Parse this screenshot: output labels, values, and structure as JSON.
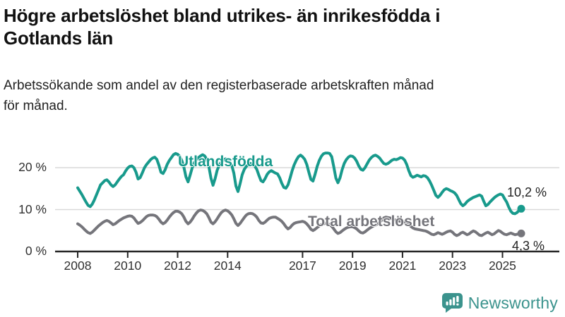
{
  "header": {
    "title_line1": "Högre arbetslöshet bland utrikes- än inrikesfödda i",
    "title_line2": "Gotlands län",
    "subtitle_line1": "Arbetssökande som andel av den registerbaserade arbetskraften månad",
    "subtitle_line2": "för månad."
  },
  "branding": {
    "name": "Newsworthy",
    "icon": "bar-chart-speech-bubble-icon",
    "color": "#3b938d"
  },
  "chart_data": {
    "type": "line",
    "x_unit": "month",
    "x_start": "2008-01",
    "x_tick_labels": [
      "2008",
      "2010",
      "2012",
      "2014",
      "2017",
      "2019",
      "2021",
      "2023",
      "2025"
    ],
    "y_tick_labels": [
      "20 %",
      "10 %",
      "0 %"
    ],
    "y_tick_values": [
      20,
      10,
      0
    ],
    "ylim": [
      0,
      25
    ],
    "grid": "horizontal-only",
    "legend_position": "labels-on-chart",
    "series": [
      {
        "name": "Utlandsfödda",
        "color": "#189a8c",
        "end_label": "10,2 %",
        "last_value": 10.2,
        "values": [
          15.2,
          14.4,
          13.6,
          12.7,
          11.8,
          11.0,
          10.7,
          11.3,
          12.3,
          13.5,
          14.7,
          15.9,
          16.4,
          16.9,
          17.1,
          16.6,
          15.9,
          15.5,
          15.9,
          16.6,
          17.3,
          17.9,
          18.3,
          19.2,
          19.9,
          20.3,
          20.4,
          20.0,
          18.9,
          17.3,
          17.6,
          18.7,
          19.9,
          20.7,
          21.3,
          21.9,
          22.3,
          22.5,
          22.0,
          20.6,
          18.9,
          18.6,
          19.5,
          20.8,
          21.7,
          22.4,
          23.1,
          23.4,
          23.2,
          22.7,
          21.7,
          20.1,
          17.8,
          16.6,
          18.2,
          20.0,
          21.2,
          21.9,
          22.4,
          22.8,
          23.1,
          22.8,
          22.0,
          20.3,
          17.5,
          15.8,
          17.4,
          19.4,
          20.6,
          21.3,
          21.8,
          22.1,
          21.9,
          21.4,
          20.5,
          18.7,
          15.6,
          14.3,
          16.2,
          18.3,
          19.6,
          20.3,
          20.8,
          21.0,
          20.8,
          20.4,
          19.6,
          18.2,
          16.9,
          16.6,
          17.4,
          18.4,
          19.0,
          19.3,
          19.0,
          18.7,
          18.5,
          17.6,
          16.3,
          15.3,
          15.1,
          15.9,
          17.5,
          19.3,
          20.7,
          21.8,
          22.6,
          23.0,
          22.6,
          22.0,
          20.8,
          18.9,
          17.2,
          16.8,
          18.4,
          20.3,
          21.7,
          22.7,
          23.3,
          23.5,
          23.5,
          23.4,
          22.6,
          20.2,
          17.5,
          16.4,
          17.6,
          19.5,
          21.0,
          21.9,
          22.5,
          22.8,
          22.7,
          22.3,
          21.5,
          20.4,
          19.6,
          19.4,
          20.0,
          20.9,
          21.8,
          22.4,
          22.8,
          23.0,
          22.7,
          22.3,
          21.6,
          21.0,
          20.8,
          21.0,
          21.4,
          21.8,
          22.0,
          21.9,
          22.1,
          22.4,
          22.3,
          21.8,
          20.8,
          19.3,
          18.1,
          17.7,
          17.9,
          18.2,
          18.0,
          17.8,
          18.1,
          18.0,
          17.6,
          16.8,
          15.8,
          14.6,
          13.4,
          12.9,
          13.4,
          14.1,
          14.7,
          15.0,
          14.8,
          14.5,
          14.3,
          14.0,
          13.4,
          12.4,
          11.4,
          10.9,
          11.3,
          11.9,
          12.3,
          12.6,
          12.9,
          13.1,
          13.3,
          13.5,
          13.2,
          12.0,
          10.9,
          11.2,
          11.8,
          12.3,
          12.8,
          13.2,
          13.5,
          13.7,
          13.5,
          12.6,
          11.8,
          10.6,
          9.6,
          9.1,
          9.0,
          9.3,
          9.8,
          10.2
        ]
      },
      {
        "name": "Total arbetslöshet",
        "color": "#75757b",
        "end_label": "4,3 %",
        "last_value": 4.3,
        "values": [
          6.6,
          6.3,
          5.9,
          5.4,
          4.9,
          4.5,
          4.3,
          4.6,
          5.1,
          5.6,
          6.1,
          6.5,
          6.9,
          7.2,
          7.4,
          7.2,
          6.8,
          6.4,
          6.6,
          7.0,
          7.4,
          7.7,
          8.0,
          8.2,
          8.4,
          8.5,
          8.4,
          8.0,
          7.3,
          6.7,
          6.9,
          7.3,
          7.8,
          8.3,
          8.6,
          8.7,
          8.7,
          8.6,
          8.3,
          7.7,
          7.0,
          6.6,
          6.9,
          7.5,
          8.2,
          8.8,
          9.3,
          9.6,
          9.6,
          9.4,
          9.0,
          8.2,
          7.2,
          6.6,
          7.0,
          7.7,
          8.5,
          9.2,
          9.7,
          9.9,
          9.8,
          9.5,
          9.0,
          8.1,
          7.0,
          6.6,
          7.1,
          7.8,
          8.6,
          9.3,
          9.7,
          9.9,
          9.7,
          9.3,
          8.7,
          7.8,
          6.7,
          6.2,
          6.7,
          7.4,
          8.1,
          8.7,
          9.0,
          9.1,
          9.0,
          8.7,
          8.2,
          7.4,
          6.8,
          6.7,
          7.0,
          7.5,
          7.9,
          8.1,
          8.2,
          8.2,
          7.9,
          7.6,
          7.2,
          6.6,
          5.9,
          5.4,
          5.7,
          6.3,
          6.7,
          6.9,
          7.0,
          7.1,
          7.2,
          7.0,
          6.6,
          6.0,
          5.3,
          5.0,
          5.3,
          5.7,
          6.1,
          6.4,
          6.6,
          6.7,
          6.6,
          6.4,
          6.0,
          5.4,
          4.7,
          4.3,
          4.5,
          4.9,
          5.3,
          5.6,
          5.8,
          5.9,
          5.9,
          5.7,
          5.4,
          4.9,
          4.5,
          4.4,
          4.7,
          5.1,
          5.5,
          5.8,
          6.1,
          6.3,
          6.6,
          6.9,
          7.5,
          8.0,
          8.2,
          8.1,
          8.0,
          7.8,
          7.6,
          7.4,
          7.3,
          7.2,
          7.1,
          7.0,
          6.8,
          6.4,
          6.0,
          5.6,
          5.4,
          5.3,
          5.2,
          5.1,
          5.0,
          4.9,
          4.7,
          4.4,
          4.1,
          4.0,
          4.2,
          4.5,
          4.3,
          4.1,
          4.3,
          4.6,
          4.8,
          4.9,
          4.6,
          4.1,
          3.8,
          4.0,
          4.4,
          4.6,
          4.3,
          4.0,
          4.2,
          4.6,
          4.9,
          4.7,
          4.3,
          3.9,
          3.8,
          4.1,
          4.4,
          4.6,
          4.3,
          4.0,
          4.2,
          4.6,
          5.0,
          4.8,
          4.4,
          4.1,
          4.0,
          4.2,
          4.4,
          4.2,
          4.0,
          4.1,
          4.2,
          4.3
        ]
      }
    ]
  }
}
